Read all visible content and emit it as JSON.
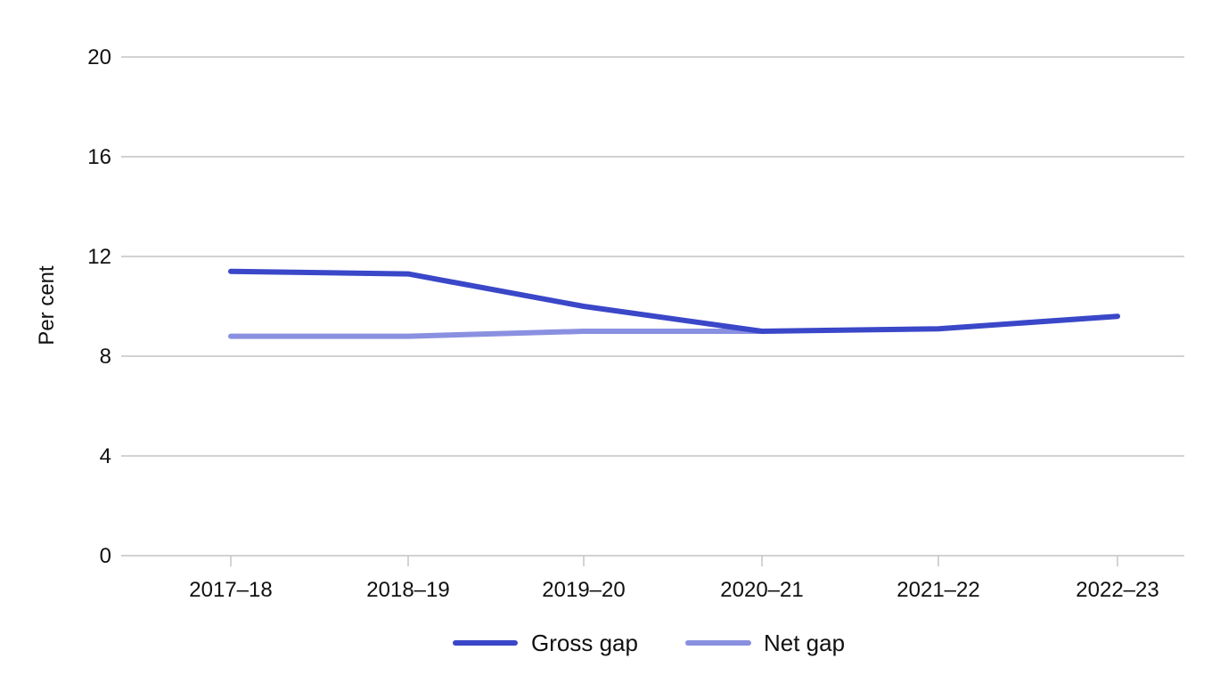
{
  "chart_data": {
    "type": "line",
    "title": "",
    "xlabel": "",
    "ylabel": "Per cent",
    "categories": [
      "2017–18",
      "2018–19",
      "2019–20",
      "2020–21",
      "2021–22",
      "2022–23"
    ],
    "yticks": [
      "0",
      "4",
      "8",
      "12",
      "16",
      "20"
    ],
    "ylim": [
      0,
      20
    ],
    "grid": "horizontal",
    "legend_position": "bottom-center",
    "series": [
      {
        "name": "Gross gap",
        "color": "#3a47c8",
        "values": [
          11.4,
          11.3,
          10.0,
          9.0,
          9.1,
          9.6
        ]
      },
      {
        "name": "Net gap",
        "color": "#8a90e0",
        "values": [
          8.8,
          8.8,
          9.0,
          9.0,
          null,
          null
        ]
      }
    ]
  }
}
